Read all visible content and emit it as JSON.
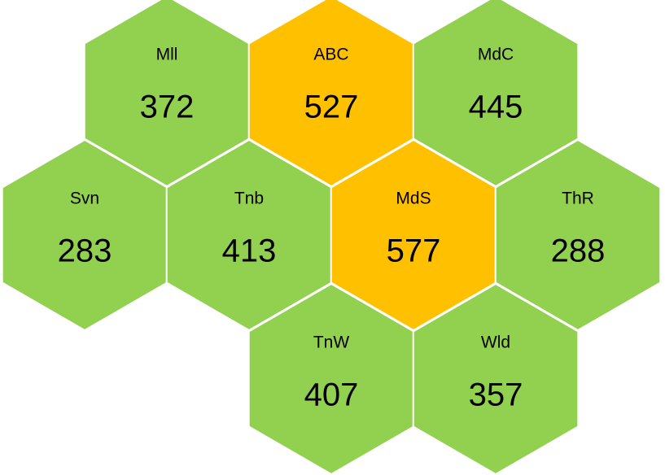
{
  "chart_data": {
    "type": "hexmap",
    "categories": [
      "Mll",
      "ABC",
      "MdC",
      "Svn",
      "Tnb",
      "MdS",
      "ThR",
      "TnW",
      "Wld"
    ],
    "values": [
      372,
      527,
      445,
      283,
      413,
      577,
      288,
      407,
      357
    ],
    "colors": [
      "#92d050",
      "#ffc000",
      "#92d050",
      "#92d050",
      "#92d050",
      "#ffc000",
      "#92d050",
      "#92d050",
      "#92d050"
    ]
  }
}
